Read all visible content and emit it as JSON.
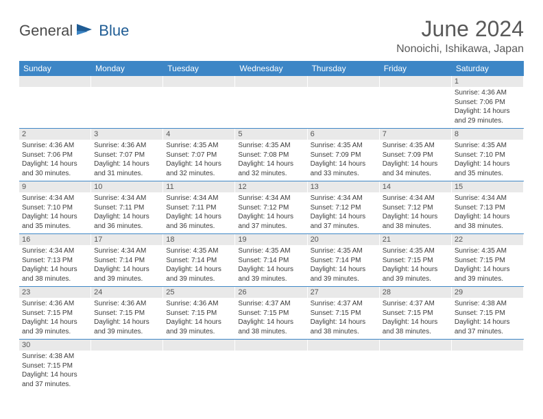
{
  "logo": {
    "part1": "General",
    "part2": "Blue"
  },
  "title": "June 2024",
  "location": "Nonoichi, Ishikawa, Japan",
  "colors": {
    "headerBlue": "#3d86c6",
    "dayNumBg": "#e9e9e9",
    "text": "#3b3b3b",
    "titleText": "#595959"
  },
  "dayHeaders": [
    "Sunday",
    "Monday",
    "Tuesday",
    "Wednesday",
    "Thursday",
    "Friday",
    "Saturday"
  ],
  "weeks": [
    [
      null,
      null,
      null,
      null,
      null,
      null,
      {
        "n": "1",
        "sr": "Sunrise: 4:36 AM",
        "ss": "Sunset: 7:06 PM",
        "d1": "Daylight: 14 hours",
        "d2": "and 29 minutes."
      }
    ],
    [
      {
        "n": "2",
        "sr": "Sunrise: 4:36 AM",
        "ss": "Sunset: 7:06 PM",
        "d1": "Daylight: 14 hours",
        "d2": "and 30 minutes."
      },
      {
        "n": "3",
        "sr": "Sunrise: 4:36 AM",
        "ss": "Sunset: 7:07 PM",
        "d1": "Daylight: 14 hours",
        "d2": "and 31 minutes."
      },
      {
        "n": "4",
        "sr": "Sunrise: 4:35 AM",
        "ss": "Sunset: 7:07 PM",
        "d1": "Daylight: 14 hours",
        "d2": "and 32 minutes."
      },
      {
        "n": "5",
        "sr": "Sunrise: 4:35 AM",
        "ss": "Sunset: 7:08 PM",
        "d1": "Daylight: 14 hours",
        "d2": "and 32 minutes."
      },
      {
        "n": "6",
        "sr": "Sunrise: 4:35 AM",
        "ss": "Sunset: 7:09 PM",
        "d1": "Daylight: 14 hours",
        "d2": "and 33 minutes."
      },
      {
        "n": "7",
        "sr": "Sunrise: 4:35 AM",
        "ss": "Sunset: 7:09 PM",
        "d1": "Daylight: 14 hours",
        "d2": "and 34 minutes."
      },
      {
        "n": "8",
        "sr": "Sunrise: 4:35 AM",
        "ss": "Sunset: 7:10 PM",
        "d1": "Daylight: 14 hours",
        "d2": "and 35 minutes."
      }
    ],
    [
      {
        "n": "9",
        "sr": "Sunrise: 4:34 AM",
        "ss": "Sunset: 7:10 PM",
        "d1": "Daylight: 14 hours",
        "d2": "and 35 minutes."
      },
      {
        "n": "10",
        "sr": "Sunrise: 4:34 AM",
        "ss": "Sunset: 7:11 PM",
        "d1": "Daylight: 14 hours",
        "d2": "and 36 minutes."
      },
      {
        "n": "11",
        "sr": "Sunrise: 4:34 AM",
        "ss": "Sunset: 7:11 PM",
        "d1": "Daylight: 14 hours",
        "d2": "and 36 minutes."
      },
      {
        "n": "12",
        "sr": "Sunrise: 4:34 AM",
        "ss": "Sunset: 7:12 PM",
        "d1": "Daylight: 14 hours",
        "d2": "and 37 minutes."
      },
      {
        "n": "13",
        "sr": "Sunrise: 4:34 AM",
        "ss": "Sunset: 7:12 PM",
        "d1": "Daylight: 14 hours",
        "d2": "and 37 minutes."
      },
      {
        "n": "14",
        "sr": "Sunrise: 4:34 AM",
        "ss": "Sunset: 7:12 PM",
        "d1": "Daylight: 14 hours",
        "d2": "and 38 minutes."
      },
      {
        "n": "15",
        "sr": "Sunrise: 4:34 AM",
        "ss": "Sunset: 7:13 PM",
        "d1": "Daylight: 14 hours",
        "d2": "and 38 minutes."
      }
    ],
    [
      {
        "n": "16",
        "sr": "Sunrise: 4:34 AM",
        "ss": "Sunset: 7:13 PM",
        "d1": "Daylight: 14 hours",
        "d2": "and 38 minutes."
      },
      {
        "n": "17",
        "sr": "Sunrise: 4:34 AM",
        "ss": "Sunset: 7:14 PM",
        "d1": "Daylight: 14 hours",
        "d2": "and 39 minutes."
      },
      {
        "n": "18",
        "sr": "Sunrise: 4:35 AM",
        "ss": "Sunset: 7:14 PM",
        "d1": "Daylight: 14 hours",
        "d2": "and 39 minutes."
      },
      {
        "n": "19",
        "sr": "Sunrise: 4:35 AM",
        "ss": "Sunset: 7:14 PM",
        "d1": "Daylight: 14 hours",
        "d2": "and 39 minutes."
      },
      {
        "n": "20",
        "sr": "Sunrise: 4:35 AM",
        "ss": "Sunset: 7:14 PM",
        "d1": "Daylight: 14 hours",
        "d2": "and 39 minutes."
      },
      {
        "n": "21",
        "sr": "Sunrise: 4:35 AM",
        "ss": "Sunset: 7:15 PM",
        "d1": "Daylight: 14 hours",
        "d2": "and 39 minutes."
      },
      {
        "n": "22",
        "sr": "Sunrise: 4:35 AM",
        "ss": "Sunset: 7:15 PM",
        "d1": "Daylight: 14 hours",
        "d2": "and 39 minutes."
      }
    ],
    [
      {
        "n": "23",
        "sr": "Sunrise: 4:36 AM",
        "ss": "Sunset: 7:15 PM",
        "d1": "Daylight: 14 hours",
        "d2": "and 39 minutes."
      },
      {
        "n": "24",
        "sr": "Sunrise: 4:36 AM",
        "ss": "Sunset: 7:15 PM",
        "d1": "Daylight: 14 hours",
        "d2": "and 39 minutes."
      },
      {
        "n": "25",
        "sr": "Sunrise: 4:36 AM",
        "ss": "Sunset: 7:15 PM",
        "d1": "Daylight: 14 hours",
        "d2": "and 39 minutes."
      },
      {
        "n": "26",
        "sr": "Sunrise: 4:37 AM",
        "ss": "Sunset: 7:15 PM",
        "d1": "Daylight: 14 hours",
        "d2": "and 38 minutes."
      },
      {
        "n": "27",
        "sr": "Sunrise: 4:37 AM",
        "ss": "Sunset: 7:15 PM",
        "d1": "Daylight: 14 hours",
        "d2": "and 38 minutes."
      },
      {
        "n": "28",
        "sr": "Sunrise: 4:37 AM",
        "ss": "Sunset: 7:15 PM",
        "d1": "Daylight: 14 hours",
        "d2": "and 38 minutes."
      },
      {
        "n": "29",
        "sr": "Sunrise: 4:38 AM",
        "ss": "Sunset: 7:15 PM",
        "d1": "Daylight: 14 hours",
        "d2": "and 37 minutes."
      }
    ],
    [
      {
        "n": "30",
        "sr": "Sunrise: 4:38 AM",
        "ss": "Sunset: 7:15 PM",
        "d1": "Daylight: 14 hours",
        "d2": "and 37 minutes."
      },
      null,
      null,
      null,
      null,
      null,
      null
    ]
  ]
}
